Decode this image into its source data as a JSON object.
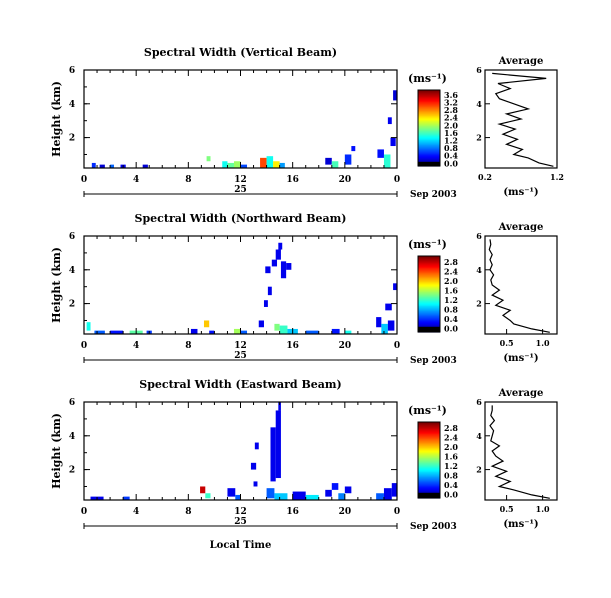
{
  "figure": {
    "date_label": "Sep 2003",
    "xlabel": "Local Time",
    "colorbar_unit": "(ms⁻¹)",
    "avg_title": "Average",
    "avg_xlabel": "(ms⁻¹)",
    "ylabel": "Height (km)",
    "day_label": "25"
  },
  "chart_data": [
    {
      "type": "heatmap",
      "title": "Spectral Width (Vertical Beam)",
      "xlabel": "Local Time",
      "ylabel": "Height (km)",
      "x_ticks": [
        "0",
        "4",
        "8",
        "12",
        "16",
        "20",
        "0"
      ],
      "y_ticks": [
        "2",
        "4",
        "6"
      ],
      "xlim": [
        0,
        24
      ],
      "ylim": [
        0.2,
        6
      ],
      "colorbar": {
        "unit": "(ms⁻¹)",
        "ticks": [
          "0.0",
          "0.4",
          "0.8",
          "1.2",
          "1.6",
          "2.0",
          "2.4",
          "2.8",
          "3.2",
          "3.6"
        ],
        "range": [
          0,
          3.6
        ]
      },
      "cells": [
        {
          "x": [
            0.6,
            0.9
          ],
          "y": [
            0.2,
            0.5
          ],
          "v": 0.6
        },
        {
          "x": [
            1.2,
            1.6
          ],
          "y": [
            0.2,
            0.4
          ],
          "v": 0.3
        },
        {
          "x": [
            2.0,
            2.3
          ],
          "y": [
            0.2,
            0.4
          ],
          "v": 0.8
        },
        {
          "x": [
            2.8,
            3.2
          ],
          "y": [
            0.2,
            0.4
          ],
          "v": 0.4
        },
        {
          "x": [
            4.5,
            4.9
          ],
          "y": [
            0.2,
            0.4
          ],
          "v": 0.3
        },
        {
          "x": [
            9.4,
            9.7
          ],
          "y": [
            0.6,
            0.9
          ],
          "v": 1.8
        },
        {
          "x": [
            10.6,
            11.0
          ],
          "y": [
            0.2,
            0.6
          ],
          "v": 1.4
        },
        {
          "x": [
            11.0,
            11.5
          ],
          "y": [
            0.2,
            0.5
          ],
          "v": 1.7
        },
        {
          "x": [
            11.5,
            12.0
          ],
          "y": [
            0.2,
            0.6
          ],
          "v": 1.9
        },
        {
          "x": [
            12.0,
            12.5
          ],
          "y": [
            0.2,
            0.4
          ],
          "v": 0.7
        },
        {
          "x": [
            13.5,
            14.0
          ],
          "y": [
            0.2,
            0.8
          ],
          "v": 2.9
        },
        {
          "x": [
            14.0,
            14.5
          ],
          "y": [
            0.2,
            0.9
          ],
          "v": 1.4
        },
        {
          "x": [
            14.5,
            15.0
          ],
          "y": [
            0.2,
            0.6
          ],
          "v": 2.3
        },
        {
          "x": [
            15.0,
            15.4
          ],
          "y": [
            0.2,
            0.5
          ],
          "v": 1.0
        },
        {
          "x": [
            18.5,
            19.0
          ],
          "y": [
            0.4,
            0.8
          ],
          "v": 0.3
        },
        {
          "x": [
            19.0,
            19.5
          ],
          "y": [
            0.2,
            0.6
          ],
          "v": 1.6
        },
        {
          "x": [
            20.0,
            20.5
          ],
          "y": [
            0.4,
            1.0
          ],
          "v": 0.6
        },
        {
          "x": [
            20.5,
            20.8
          ],
          "y": [
            1.2,
            1.5
          ],
          "v": 0.5
        },
        {
          "x": [
            22.5,
            23.0
          ],
          "y": [
            0.8,
            1.3
          ],
          "v": 0.5
        },
        {
          "x": [
            23.0,
            23.5
          ],
          "y": [
            0.2,
            1.0
          ],
          "v": 1.5
        },
        {
          "x": [
            23.5,
            23.9
          ],
          "y": [
            1.5,
            2.0
          ],
          "v": 0.4
        },
        {
          "x": [
            23.3,
            23.6
          ],
          "y": [
            2.8,
            3.2
          ],
          "v": 0.4
        },
        {
          "x": [
            23.7,
            24.0
          ],
          "y": [
            4.2,
            4.8
          ],
          "v": 0.3
        }
      ],
      "average": {
        "xlim": [
          0.2,
          1.2
        ],
        "x_ticks": [
          "0.2",
          "1.2"
        ],
        "y_ticks": [
          "2",
          "4",
          "6"
        ],
        "height": [
          0.3,
          0.5,
          0.8,
          1.0,
          1.3,
          1.6,
          1.9,
          2.2,
          2.5,
          2.8,
          3.1,
          3.4,
          3.7,
          4.0,
          4.3,
          4.6,
          4.9,
          5.2,
          5.5,
          5.8
        ],
        "width": [
          1.15,
          0.95,
          0.8,
          0.6,
          0.72,
          0.5,
          0.65,
          0.45,
          0.62,
          0.4,
          0.7,
          0.5,
          0.8,
          0.6,
          0.4,
          0.35,
          0.55,
          0.38,
          1.05,
          0.3
        ]
      }
    },
    {
      "type": "heatmap",
      "title": "Spectral Width (Northward Beam)",
      "xlabel": "Local Time",
      "ylabel": "Height (km)",
      "x_ticks": [
        "0",
        "4",
        "8",
        "12",
        "16",
        "20",
        "0"
      ],
      "y_ticks": [
        "2",
        "4",
        "6"
      ],
      "xlim": [
        0,
        24
      ],
      "ylim": [
        0.2,
        6
      ],
      "colorbar": {
        "unit": "(ms⁻¹)",
        "ticks": [
          "0.0",
          "0.4",
          "0.8",
          "1.2",
          "1.6",
          "2.0",
          "2.4",
          "2.8"
        ],
        "range": [
          0,
          2.8
        ]
      },
      "cells": [
        {
          "x": [
            0.2,
            0.5
          ],
          "y": [
            0.4,
            0.9
          ],
          "v": 1.1
        },
        {
          "x": [
            0.8,
            1.6
          ],
          "y": [
            0.2,
            0.4
          ],
          "v": 0.6
        },
        {
          "x": [
            2.0,
            3.0
          ],
          "y": [
            0.2,
            0.4
          ],
          "v": 0.4
        },
        {
          "x": [
            3.5,
            4.5
          ],
          "y": [
            0.2,
            0.4
          ],
          "v": 1.3
        },
        {
          "x": [
            4.8,
            5.2
          ],
          "y": [
            0.2,
            0.4
          ],
          "v": 0.5
        },
        {
          "x": [
            8.2,
            8.7
          ],
          "y": [
            0.2,
            0.5
          ],
          "v": 0.3
        },
        {
          "x": [
            9.2,
            9.6
          ],
          "y": [
            0.6,
            1.0
          ],
          "v": 1.9
        },
        {
          "x": [
            9.6,
            10.0
          ],
          "y": [
            0.2,
            0.4
          ],
          "v": 0.4
        },
        {
          "x": [
            11.5,
            12.0
          ],
          "y": [
            0.2,
            0.5
          ],
          "v": 1.5
        },
        {
          "x": [
            12.0,
            12.5
          ],
          "y": [
            0.2,
            0.4
          ],
          "v": 0.6
        },
        {
          "x": [
            13.4,
            13.8
          ],
          "y": [
            0.6,
            1.0
          ],
          "v": 0.3
        },
        {
          "x": [
            13.8,
            14.1
          ],
          "y": [
            1.8,
            2.2
          ],
          "v": 0.3
        },
        {
          "x": [
            14.1,
            14.4
          ],
          "y": [
            2.5,
            3.0
          ],
          "v": 0.3
        },
        {
          "x": [
            13.9,
            14.3
          ],
          "y": [
            3.8,
            4.2
          ],
          "v": 0.3
        },
        {
          "x": [
            14.4,
            14.8
          ],
          "y": [
            4.2,
            4.6
          ],
          "v": 0.3
        },
        {
          "x": [
            14.7,
            15.1
          ],
          "y": [
            4.6,
            5.2
          ],
          "v": 0.3
        },
        {
          "x": [
            15.1,
            15.5
          ],
          "y": [
            3.5,
            4.5
          ],
          "v": 0.3
        },
        {
          "x": [
            15.5,
            15.9
          ],
          "y": [
            4.0,
            4.4
          ],
          "v": 0.3
        },
        {
          "x": [
            14.9,
            15.2
          ],
          "y": [
            5.2,
            5.6
          ],
          "v": 0.3
        },
        {
          "x": [
            14.6,
            15.0
          ],
          "y": [
            0.4,
            0.8
          ],
          "v": 1.4
        },
        {
          "x": [
            15.0,
            15.6
          ],
          "y": [
            0.2,
            0.7
          ],
          "v": 1.2
        },
        {
          "x": [
            15.6,
            16.4
          ],
          "y": [
            0.2,
            0.5
          ],
          "v": 0.9
        },
        {
          "x": [
            17.0,
            18.0
          ],
          "y": [
            0.2,
            0.4
          ],
          "v": 0.6
        },
        {
          "x": [
            19.0,
            19.6
          ],
          "y": [
            0.2,
            0.5
          ],
          "v": 0.4
        },
        {
          "x": [
            20.0,
            20.5
          ],
          "y": [
            0.2,
            0.4
          ],
          "v": 1.1
        },
        {
          "x": [
            22.4,
            22.8
          ],
          "y": [
            0.6,
            1.2
          ],
          "v": 0.3
        },
        {
          "x": [
            22.8,
            23.3
          ],
          "y": [
            0.2,
            0.8
          ],
          "v": 0.9
        },
        {
          "x": [
            23.3,
            23.8
          ],
          "y": [
            0.4,
            1.0
          ],
          "v": 0.3
        },
        {
          "x": [
            23.1,
            23.6
          ],
          "y": [
            1.6,
            2.0
          ],
          "v": 0.3
        },
        {
          "x": [
            23.7,
            24.0
          ],
          "y": [
            2.8,
            3.2
          ],
          "v": 0.3
        }
      ],
      "average": {
        "xlim": [
          0.2,
          1.2
        ],
        "x_ticks": [
          "0.5",
          "1.0"
        ],
        "y_ticks": [
          "2",
          "4",
          "6"
        ],
        "height": [
          0.3,
          0.5,
          0.8,
          1.0,
          1.3,
          1.6,
          1.9,
          2.2,
          2.5,
          2.8,
          3.1,
          3.4,
          3.7,
          4.0,
          4.3,
          4.6,
          4.9,
          5.2,
          5.5,
          5.8
        ],
        "width": [
          1.1,
          0.85,
          0.6,
          0.55,
          0.45,
          0.55,
          0.35,
          0.45,
          0.3,
          0.4,
          0.3,
          0.28,
          0.32,
          0.27,
          0.3,
          0.27,
          0.3,
          0.26,
          0.28,
          0.27
        ]
      }
    },
    {
      "type": "heatmap",
      "title": "Spectral Width (Eastward Beam)",
      "xlabel": "Local Time",
      "ylabel": "Height (km)",
      "x_ticks": [
        "0",
        "4",
        "8",
        "12",
        "16",
        "20",
        "0"
      ],
      "y_ticks": [
        "2",
        "4",
        "6"
      ],
      "xlim": [
        0,
        24
      ],
      "ylim": [
        0.2,
        6
      ],
      "colorbar": {
        "unit": "(ms⁻¹)",
        "ticks": [
          "0.0",
          "0.4",
          "0.8",
          "1.2",
          "1.6",
          "2.0",
          "2.4",
          "2.8"
        ],
        "range": [
          0,
          2.8
        ]
      },
      "cells": [
        {
          "x": [
            0.5,
            1.5
          ],
          "y": [
            0.2,
            0.4
          ],
          "v": 0.3
        },
        {
          "x": [
            3.0,
            3.5
          ],
          "y": [
            0.2,
            0.4
          ],
          "v": 0.5
        },
        {
          "x": [
            8.9,
            9.3
          ],
          "y": [
            0.6,
            1.0
          ],
          "v": 2.6
        },
        {
          "x": [
            9.3,
            9.7
          ],
          "y": [
            0.3,
            0.6
          ],
          "v": 1.2
        },
        {
          "x": [
            11.0,
            11.6
          ],
          "y": [
            0.4,
            0.9
          ],
          "v": 0.3
        },
        {
          "x": [
            11.6,
            12.0
          ],
          "y": [
            0.2,
            0.5
          ],
          "v": 0.6
        },
        {
          "x": [
            12.8,
            13.2
          ],
          "y": [
            2.0,
            2.4
          ],
          "v": 0.3
        },
        {
          "x": [
            13.1,
            13.4
          ],
          "y": [
            3.2,
            3.6
          ],
          "v": 0.3
        },
        {
          "x": [
            13.0,
            13.3
          ],
          "y": [
            1.0,
            1.3
          ],
          "v": 0.3
        },
        {
          "x": [
            14.3,
            14.7
          ],
          "y": [
            1.3,
            4.5
          ],
          "v": 0.3
        },
        {
          "x": [
            14.7,
            15.1
          ],
          "y": [
            1.5,
            5.5
          ],
          "v": 0.3
        },
        {
          "x": [
            14.9,
            15.1
          ],
          "y": [
            5.5,
            6.0
          ],
          "v": 0.3
        },
        {
          "x": [
            14.0,
            14.6
          ],
          "y": [
            0.3,
            0.9
          ],
          "v": 0.6
        },
        {
          "x": [
            14.6,
            15.6
          ],
          "y": [
            0.2,
            0.6
          ],
          "v": 0.9
        },
        {
          "x": [
            16.0,
            17.0
          ],
          "y": [
            0.2,
            0.7
          ],
          "v": 0.3
        },
        {
          "x": [
            17.0,
            18.0
          ],
          "y": [
            0.2,
            0.5
          ],
          "v": 1.0
        },
        {
          "x": [
            18.5,
            19.0
          ],
          "y": [
            0.4,
            0.8
          ],
          "v": 0.3
        },
        {
          "x": [
            19.0,
            19.5
          ],
          "y": [
            0.8,
            1.2
          ],
          "v": 0.4
        },
        {
          "x": [
            19.5,
            20.0
          ],
          "y": [
            0.2,
            0.6
          ],
          "v": 0.7
        },
        {
          "x": [
            20.0,
            20.5
          ],
          "y": [
            0.6,
            1.0
          ],
          "v": 0.3
        },
        {
          "x": [
            22.4,
            23.0
          ],
          "y": [
            0.2,
            0.6
          ],
          "v": 0.6
        },
        {
          "x": [
            23.0,
            23.6
          ],
          "y": [
            0.2,
            0.9
          ],
          "v": 0.3
        },
        {
          "x": [
            23.6,
            24.0
          ],
          "y": [
            0.4,
            1.2
          ],
          "v": 0.3
        }
      ],
      "average": {
        "xlim": [
          0.2,
          1.2
        ],
        "x_ticks": [
          "0.5",
          "1.0"
        ],
        "y_ticks": [
          "2",
          "4",
          "6"
        ],
        "height": [
          0.3,
          0.5,
          0.8,
          1.0,
          1.3,
          1.6,
          1.9,
          2.2,
          2.5,
          2.8,
          3.1,
          3.4,
          3.7,
          4.0,
          4.3,
          4.6,
          4.9,
          5.2,
          5.5,
          5.8
        ],
        "width": [
          1.1,
          0.85,
          0.6,
          0.4,
          0.55,
          0.35,
          0.5,
          0.3,
          0.45,
          0.35,
          0.3,
          0.4,
          0.28,
          0.3,
          0.32,
          0.27,
          0.33,
          0.28,
          0.3,
          0.3
        ]
      }
    }
  ]
}
